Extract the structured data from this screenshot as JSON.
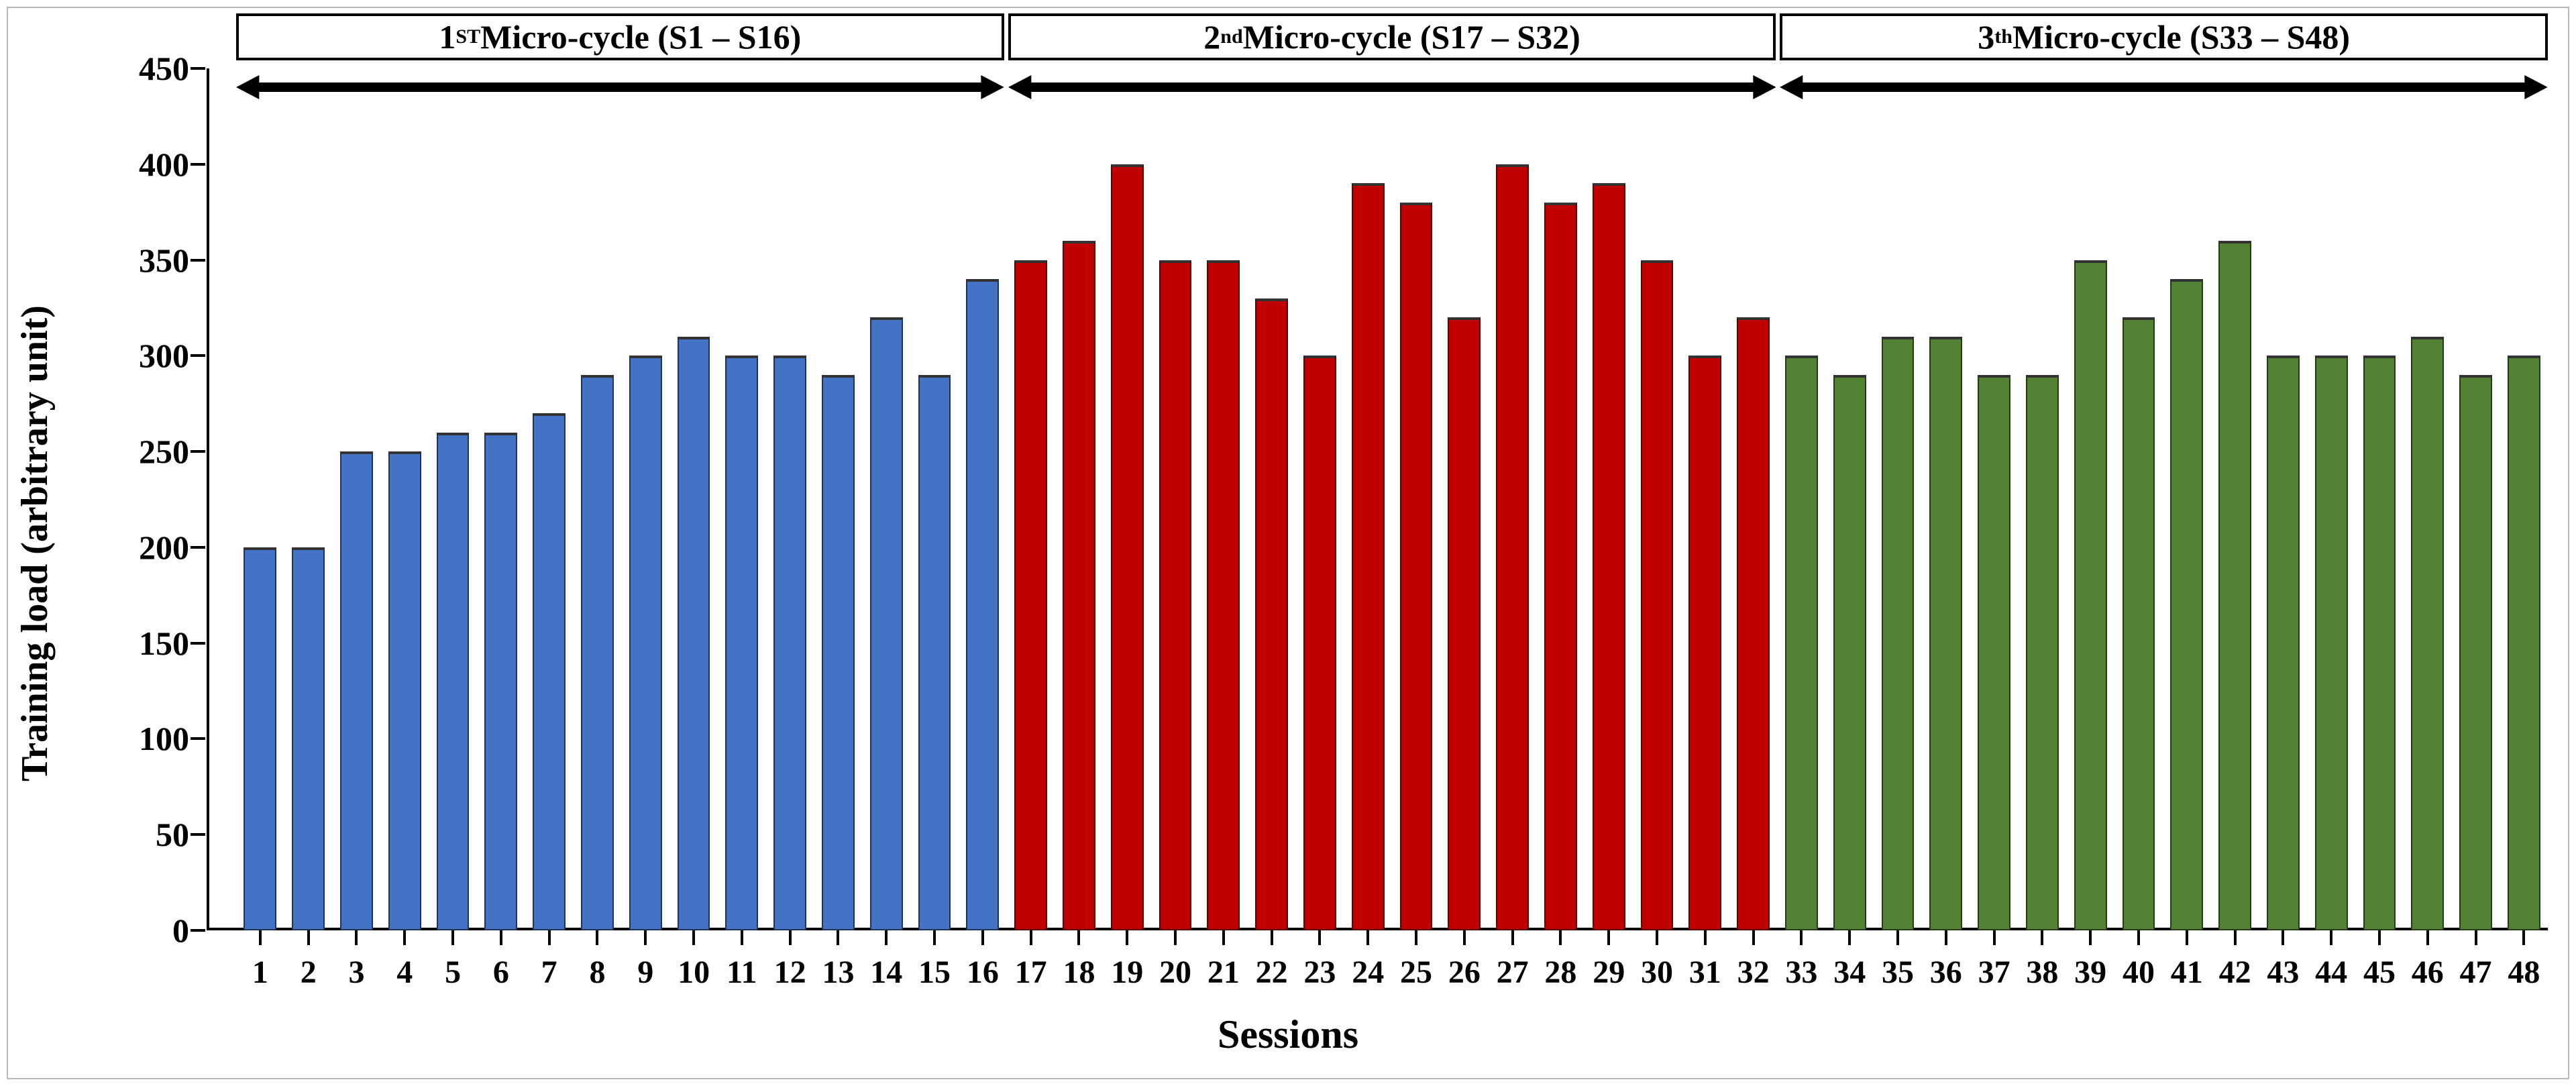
{
  "chart": {
    "type": "bar",
    "background_color": "#ffffff",
    "border_color": "#b8b8b8",
    "y_axis": {
      "title": "Training load (arbitrary unit)",
      "min": 0,
      "max": 450,
      "tick_step": 50,
      "ticks": [
        0,
        50,
        100,
        150,
        200,
        250,
        300,
        350,
        400,
        450
      ],
      "title_fontsize": 56,
      "tick_fontsize": 50,
      "axis_color": "#000000"
    },
    "x_axis": {
      "title": "Sessions",
      "labels": [
        "1",
        "2",
        "3",
        "4",
        "5",
        "6",
        "7",
        "8",
        "9",
        "10",
        "11",
        "12",
        "13",
        "14",
        "15",
        "16",
        "17",
        "18",
        "19",
        "20",
        "21",
        "22",
        "23",
        "24",
        "25",
        "26",
        "27",
        "28",
        "29",
        "30",
        "31",
        "32",
        "33",
        "34",
        "35",
        "36",
        "37",
        "38",
        "39",
        "40",
        "41",
        "42",
        "43",
        "44",
        "45",
        "46",
        "47",
        "48"
      ],
      "title_fontsize": 60,
      "tick_fontsize": 48,
      "axis_color": "#000000"
    },
    "micro_cycles": [
      {
        "html": "1<sup>ST</sup> Micro-cycle (S1 – S16)",
        "start": 1,
        "end": 16
      },
      {
        "html": "2<sup>nd</sup> Micro-cycle (S17 – S32)",
        "start": 17,
        "end": 32
      },
      {
        "html": "3<sup>th</sup> Micro-cycle (S33 – S48)",
        "start": 33,
        "end": 48
      }
    ],
    "series_colors": {
      "cycle1": "#4472c4",
      "cycle2": "#c00000",
      "cycle3": "#548235"
    },
    "bar_border_color": "#333333",
    "bar_width_ratio": 0.68,
    "micro_label_border": "#000000",
    "micro_label_fontsize": 50,
    "arrow_stroke": "#000000",
    "arrow_stroke_width": 14,
    "data": [
      {
        "session": 1,
        "value": 200,
        "color_key": "cycle1"
      },
      {
        "session": 2,
        "value": 200,
        "color_key": "cycle1"
      },
      {
        "session": 3,
        "value": 250,
        "color_key": "cycle1"
      },
      {
        "session": 4,
        "value": 250,
        "color_key": "cycle1"
      },
      {
        "session": 5,
        "value": 260,
        "color_key": "cycle1"
      },
      {
        "session": 6,
        "value": 260,
        "color_key": "cycle1"
      },
      {
        "session": 7,
        "value": 270,
        "color_key": "cycle1"
      },
      {
        "session": 8,
        "value": 290,
        "color_key": "cycle1"
      },
      {
        "session": 9,
        "value": 300,
        "color_key": "cycle1"
      },
      {
        "session": 10,
        "value": 310,
        "color_key": "cycle1"
      },
      {
        "session": 11,
        "value": 300,
        "color_key": "cycle1"
      },
      {
        "session": 12,
        "value": 300,
        "color_key": "cycle1"
      },
      {
        "session": 13,
        "value": 290,
        "color_key": "cycle1"
      },
      {
        "session": 14,
        "value": 320,
        "color_key": "cycle1"
      },
      {
        "session": 15,
        "value": 290,
        "color_key": "cycle1"
      },
      {
        "session": 16,
        "value": 340,
        "color_key": "cycle1"
      },
      {
        "session": 17,
        "value": 350,
        "color_key": "cycle2"
      },
      {
        "session": 18,
        "value": 360,
        "color_key": "cycle2"
      },
      {
        "session": 19,
        "value": 400,
        "color_key": "cycle2"
      },
      {
        "session": 20,
        "value": 350,
        "color_key": "cycle2"
      },
      {
        "session": 21,
        "value": 350,
        "color_key": "cycle2"
      },
      {
        "session": 22,
        "value": 330,
        "color_key": "cycle2"
      },
      {
        "session": 23,
        "value": 300,
        "color_key": "cycle2"
      },
      {
        "session": 24,
        "value": 390,
        "color_key": "cycle2"
      },
      {
        "session": 25,
        "value": 380,
        "color_key": "cycle2"
      },
      {
        "session": 26,
        "value": 320,
        "color_key": "cycle2"
      },
      {
        "session": 27,
        "value": 400,
        "color_key": "cycle2"
      },
      {
        "session": 28,
        "value": 380,
        "color_key": "cycle2"
      },
      {
        "session": 29,
        "value": 390,
        "color_key": "cycle2"
      },
      {
        "session": 30,
        "value": 350,
        "color_key": "cycle2"
      },
      {
        "session": 31,
        "value": 300,
        "color_key": "cycle2"
      },
      {
        "session": 32,
        "value": 320,
        "color_key": "cycle2"
      },
      {
        "session": 33,
        "value": 300,
        "color_key": "cycle3"
      },
      {
        "session": 34,
        "value": 290,
        "color_key": "cycle3"
      },
      {
        "session": 35,
        "value": 310,
        "color_key": "cycle3"
      },
      {
        "session": 36,
        "value": 310,
        "color_key": "cycle3"
      },
      {
        "session": 37,
        "value": 290,
        "color_key": "cycle3"
      },
      {
        "session": 38,
        "value": 290,
        "color_key": "cycle3"
      },
      {
        "session": 39,
        "value": 350,
        "color_key": "cycle3"
      },
      {
        "session": 40,
        "value": 320,
        "color_key": "cycle3"
      },
      {
        "session": 41,
        "value": 340,
        "color_key": "cycle3"
      },
      {
        "session": 42,
        "value": 360,
        "color_key": "cycle3"
      },
      {
        "session": 43,
        "value": 300,
        "color_key": "cycle3"
      },
      {
        "session": 44,
        "value": 300,
        "color_key": "cycle3"
      },
      {
        "session": 45,
        "value": 300,
        "color_key": "cycle3"
      },
      {
        "session": 46,
        "value": 310,
        "color_key": "cycle3"
      },
      {
        "session": 47,
        "value": 290,
        "color_key": "cycle3"
      },
      {
        "session": 48,
        "value": 300,
        "color_key": "cycle3"
      }
    ]
  }
}
